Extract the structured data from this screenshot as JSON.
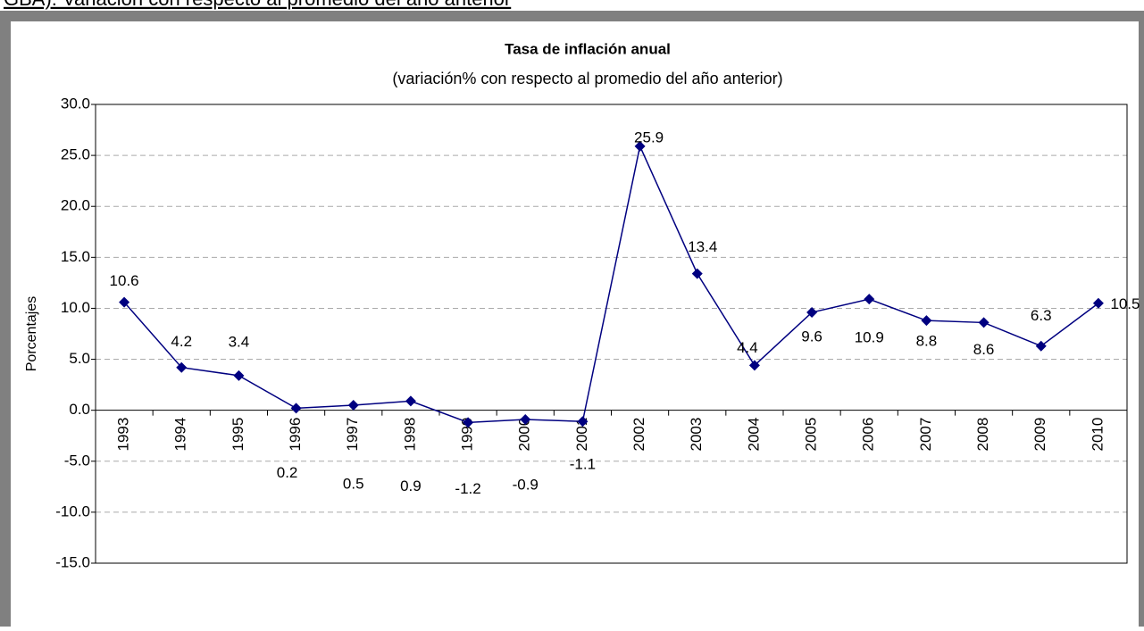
{
  "page_heading": "GBA): Variación con respecto al promedio del año anterior",
  "chart_data": {
    "type": "line",
    "title": "Tasa de inflación anual",
    "subtitle": "(variación% con respecto al promedio del año anterior)",
    "y_label": "Porcentajes",
    "categories": [
      "1993",
      "1994",
      "1995",
      "1996",
      "1997",
      "1998",
      "1999",
      "2000",
      "2001",
      "2002",
      "2003",
      "2004",
      "2005",
      "2006",
      "2007",
      "2008",
      "2009",
      "2010"
    ],
    "values": [
      10.6,
      4.2,
      3.4,
      0.2,
      0.5,
      0.9,
      -1.2,
      -0.9,
      -1.1,
      25.9,
      13.4,
      4.4,
      9.6,
      10.9,
      8.8,
      8.6,
      6.3,
      10.5
    ],
    "color": "#000080",
    "ylim": [
      -15,
      30
    ],
    "yticks": [
      {
        "value": -15,
        "label": "-15.0"
      },
      {
        "value": -10,
        "label": "-10.0"
      },
      {
        "value": -5,
        "label": "-5.0"
      },
      {
        "value": 0,
        "label": "0.0"
      },
      {
        "value": 5,
        "label": "5.0"
      },
      {
        "value": 10,
        "label": "10.0"
      },
      {
        "value": 15,
        "label": "15.0"
      },
      {
        "value": 20,
        "label": "20.0"
      },
      {
        "value": 25,
        "label": "25.0"
      },
      {
        "value": 30,
        "label": "30.0"
      }
    ],
    "grid": true
  }
}
